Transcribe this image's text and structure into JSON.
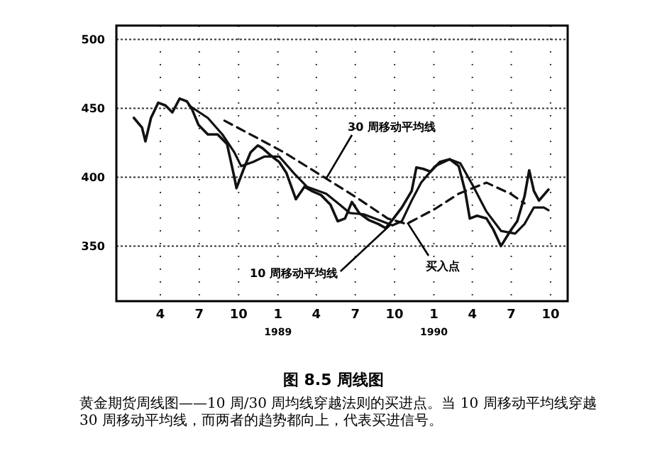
{
  "chart_data": {
    "type": "line",
    "title": "图 8.5 周线图",
    "annotations": [
      {
        "text": "30 周移动平均线",
        "x": "1989-04-24",
        "y": 399
      },
      {
        "text": "10 周移动平均线",
        "x": "1989-09-20",
        "y": 365
      },
      {
        "text": "买入点",
        "x": "1989-10-31",
        "y": 367
      },
      "黄金期货周线图——10 周/30 周均线穿越法则的买进点。当 10 周移动平均线穿越 30 周移动平均线，而两者的趋势都向上，代表买进信号。"
    ],
    "xlim": [
      "1987-12-20",
      "1990-11-10"
    ],
    "ylim": [
      310,
      510
    ],
    "yticks": [
      350,
      400,
      450,
      500
    ],
    "xticks": [
      {
        "value": "1988-04-01",
        "label": "4"
      },
      {
        "value": "1988-07-01",
        "label": "7"
      },
      {
        "value": "1988-10-01",
        "label": "10"
      },
      {
        "value": "1989-01-01",
        "label": "1\n$_{1989}$"
      },
      {
        "value": "1989-04-01",
        "label": "4"
      },
      {
        "value": "1989-07-01",
        "label": "7"
      },
      {
        "value": "1989-10-01",
        "label": "10"
      },
      {
        "value": "1990-01-01",
        "label": "1\n$_{1990}$"
      },
      {
        "value": "1990-04-01",
        "label": "4"
      },
      {
        "value": "1990-07-01",
        "label": "7"
      },
      {
        "value": "1990-10-01",
        "label": "10"
      }
    ],
    "grid": true,
    "marker": "none",
    "series": [
      {
        "color": "#111111",
        "line_style": "solid",
        "x": [
          "1988-01-30",
          "1988-02-18",
          "1988-02-26",
          "1988-03-10",
          "1988-03-27",
          "1988-04-13",
          "1988-04-29",
          "1988-05-16",
          "1988-06-02",
          "1988-06-13",
          "1988-06-29",
          "1988-07-21",
          "1988-08-13",
          "1988-09-04",
          "1988-09-21",
          "1988-09-26",
          "1988-10-13",
          "1988-10-29",
          "1988-11-15",
          "1988-11-26",
          "1988-12-18",
          "1989-01-04",
          "1989-01-21",
          "1989-02-12",
          "1989-03-04",
          "1989-03-21",
          "1989-04-12",
          "1989-05-04",
          "1989-05-21",
          "1989-06-07",
          "1989-06-23",
          "1989-07-10",
          "1989-08-01",
          "1989-08-24",
          "1989-09-10",
          "1989-09-26",
          "1989-10-18",
          "1989-11-10",
          "1989-11-21",
          "1989-12-07",
          "1989-12-24",
          "1990-01-15",
          "1990-02-07",
          "1990-02-28",
          "1990-03-15",
          "1990-03-26",
          "1990-04-12",
          "1990-05-04",
          "1990-05-20",
          "1990-06-07",
          "1990-06-29",
          "1990-07-15",
          "1990-08-01",
          "1990-08-12",
          "1990-08-23",
          "1990-09-04",
          "1990-09-15",
          "1990-09-26"
        ],
        "values": [
          443,
          436,
          426,
          443,
          454,
          452,
          447,
          457,
          455,
          450,
          438,
          431,
          431,
          424,
          400,
          392,
          406,
          418,
          423,
          421,
          415,
          411,
          403,
          384,
          393,
          390,
          387,
          380,
          368,
          370,
          382,
          374,
          369,
          366,
          363,
          369,
          378,
          390,
          407,
          406,
          404,
          411,
          413,
          408,
          390,
          370,
          372,
          370,
          362,
          350,
          361,
          368,
          386,
          405,
          390,
          383,
          387,
          391
        ]
      },
      {
        "color": "#111111",
        "line_style": "solid",
        "x": [
          "1988-06-07",
          "1988-07-21",
          "1988-08-24",
          "1988-09-21",
          "1988-10-07",
          "1988-11-04",
          "1988-12-01",
          "1989-01-04",
          "1989-02-07",
          "1989-03-10",
          "1989-04-24",
          "1989-05-26",
          "1989-06-18",
          "1989-07-21",
          "1989-08-24",
          "1989-09-26",
          "1989-10-18",
          "1989-11-10",
          "1989-12-02",
          "1990-01-04",
          "1990-02-07",
          "1990-03-04",
          "1990-04-02",
          "1990-05-04",
          "1990-06-07",
          "1990-07-10",
          "1990-08-01",
          "1990-08-23",
          "1990-09-15",
          "1990-09-26"
        ],
        "values": [
          452,
          443,
          431,
          418,
          408,
          411,
          415,
          415,
          403,
          393,
          388,
          380,
          374,
          373,
          369,
          365,
          368,
          383,
          396,
          408,
          413,
          410,
          394,
          375,
          361,
          359,
          366,
          378,
          378,
          376
        ]
      },
      {
        "color": "#111111",
        "line_style": "dashed",
        "x": [
          "1988-08-29",
          "1988-11-10",
          "1989-01-15",
          "1989-04-24",
          "1989-07-10",
          "1989-09-15",
          "1989-10-29",
          "1990-01-04",
          "1990-02-28",
          "1990-05-04",
          "1990-06-29",
          "1990-08-01"
        ],
        "values": [
          441,
          429,
          418,
          399,
          384,
          370,
          366,
          377,
          388,
          396,
          388,
          381
        ]
      }
    ]
  }
}
